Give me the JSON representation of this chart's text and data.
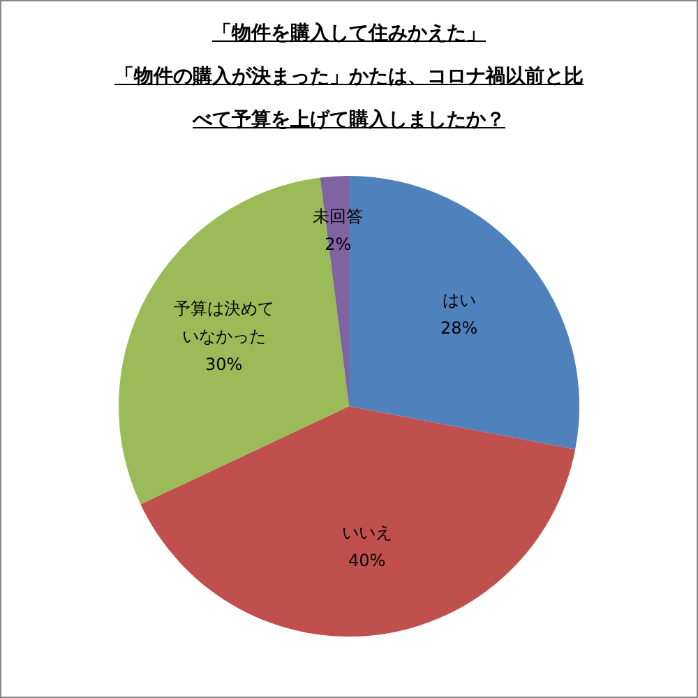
{
  "chart_data": {
    "type": "pie",
    "title": "「物件を購入して住みかえた」",
    "subtitle": "「物件の購入が決まった」かたは、コロナ禍以前と比べて予算を上げて購入しましたか？",
    "categories": [
      "はい",
      "いいえ",
      "予算は決めていなかった",
      "未回答"
    ],
    "values": [
      28,
      40,
      30,
      2
    ],
    "colors": [
      "#4f81bd",
      "#c0504d",
      "#9bbb59",
      "#8064a2"
    ],
    "value_labels": [
      "28%",
      "40%",
      "30%",
      "2%"
    ],
    "legend": false
  }
}
